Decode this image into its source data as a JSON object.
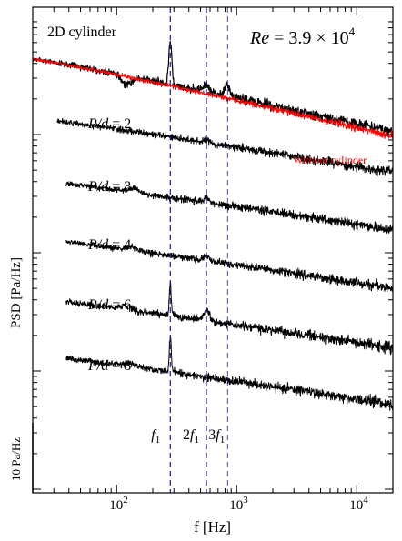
{
  "chart_data": {
    "type": "line",
    "xlabel": "f [Hz]",
    "ylabel": "PSD [Pa/Hz]",
    "x_scale": "log",
    "xlim": [
      20,
      20000
    ],
    "x_ticks": [
      {
        "value": 100,
        "base": "10",
        "exp": "2"
      },
      {
        "value": 1000,
        "base": "10",
        "exp": "3"
      },
      {
        "value": 10000,
        "base": "10",
        "exp": "4"
      }
    ],
    "reynolds_label": {
      "prefix": "Re",
      "value": " = 3.9 × 10",
      "exp": "4"
    },
    "scale_bar_label": "10 Pa/Hz",
    "harmonic_lines": [
      {
        "freq": 280,
        "prefix": "",
        "sub": "1"
      },
      {
        "freq": 560,
        "prefix": "2",
        "sub": "1"
      },
      {
        "freq": 840,
        "prefix": "3",
        "sub": "1"
      }
    ],
    "series": [
      {
        "name": "2D cylinder",
        "color": "#000000",
        "peak_hz": 280
      },
      {
        "name": "Without cylinder",
        "color": "#ff0000"
      },
      {
        "name": "P/d = 2",
        "color": "#000000"
      },
      {
        "name": "P/d = 3",
        "color": "#000000"
      },
      {
        "name": "P/d = 4",
        "color": "#000000"
      },
      {
        "name": "P/d = 6",
        "color": "#000000",
        "peak_hz": 280
      },
      {
        "name": "P/d = 8",
        "color": "#000000",
        "peak_hz": 280
      }
    ],
    "case_labels": [
      {
        "prefix": "P/d",
        "value": " = 2"
      },
      {
        "prefix": "P/d",
        "value": " = 3"
      },
      {
        "prefix": "P/d",
        "value": " = 4"
      },
      {
        "prefix": "P/d",
        "value": " = 6"
      },
      {
        "prefix": "P/d",
        "value": " = 8"
      }
    ],
    "cylinder_label": "2D cylinder",
    "no_cylinder_label": "Without cylinder",
    "no_cylinder_color": "#ff0000",
    "harmonic_line_color": "#1c1c8c"
  }
}
